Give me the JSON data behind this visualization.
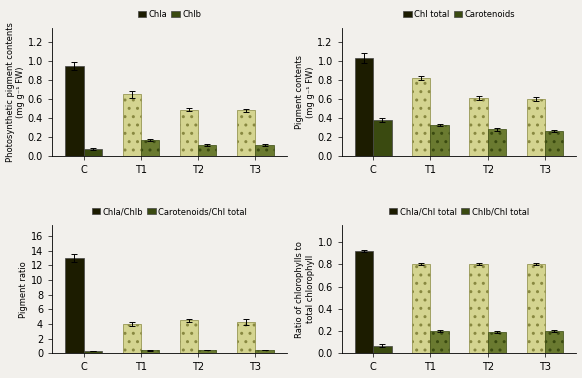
{
  "categories": [
    "C",
    "T1",
    "T2",
    "T3"
  ],
  "subplot1": {
    "title_labels": [
      "Chla",
      "Chlb"
    ],
    "ylabel": "Photosynthetic pigment contents\n(mg g⁻¹ FW)",
    "ylim": [
      0.0,
      1.35
    ],
    "yticks": [
      0.0,
      0.2,
      0.4,
      0.6,
      0.8,
      1.0,
      1.2
    ],
    "series1_values": [
      0.95,
      0.65,
      0.49,
      0.48
    ],
    "series1_errors": [
      0.04,
      0.04,
      0.02,
      0.02
    ],
    "series2_values": [
      0.07,
      0.17,
      0.12,
      0.12
    ],
    "series2_errors": [
      0.01,
      0.01,
      0.01,
      0.01
    ]
  },
  "subplot2": {
    "title_labels": [
      "Chl total",
      "Carotenoids"
    ],
    "ylabel": "Pigment contents\n(mg g⁻¹ FW)",
    "ylim": [
      0.0,
      1.35
    ],
    "yticks": [
      0.0,
      0.2,
      0.4,
      0.6,
      0.8,
      1.0,
      1.2
    ],
    "series1_values": [
      1.03,
      0.82,
      0.61,
      0.6
    ],
    "series1_errors": [
      0.05,
      0.02,
      0.02,
      0.02
    ],
    "series2_values": [
      0.38,
      0.33,
      0.28,
      0.26
    ],
    "series2_errors": [
      0.02,
      0.01,
      0.02,
      0.01
    ]
  },
  "subplot3": {
    "title_labels": [
      "Chla/Chlb",
      "Carotenoids/Chl total"
    ],
    "ylabel": "Pigment ratio",
    "ylim": [
      0.0,
      17.5
    ],
    "yticks": [
      0.0,
      2.0,
      4.0,
      6.0,
      8.0,
      10.0,
      12.0,
      14.0,
      16.0
    ],
    "series1_values": [
      13.0,
      4.0,
      4.5,
      4.3
    ],
    "series1_errors": [
      0.5,
      0.3,
      0.2,
      0.4
    ],
    "series2_values": [
      0.37,
      0.4,
      0.46,
      0.44
    ],
    "series2_errors": [
      0.02,
      0.02,
      0.03,
      0.03
    ]
  },
  "subplot4": {
    "title_labels": [
      "Chla/Chl total",
      "Chlb/Chl total"
    ],
    "ylabel": "Ratio of chlorophylls to\ntotal chlorophyll",
    "ylim": [
      0.0,
      1.15
    ],
    "yticks": [
      0.0,
      0.2,
      0.4,
      0.6,
      0.8,
      1.0
    ],
    "series1_values": [
      0.92,
      0.8,
      0.8,
      0.8
    ],
    "series1_errors": [
      0.01,
      0.01,
      0.01,
      0.01
    ],
    "series2_values": [
      0.07,
      0.2,
      0.19,
      0.2
    ],
    "series2_errors": [
      0.01,
      0.01,
      0.01,
      0.01
    ]
  },
  "bar_width": 0.32,
  "background_color": "#f2f0ec",
  "color_s1_solid": "#1c1c00",
  "color_s1_hatch_face": "#d4d490",
  "color_s1_hatch_edge": "#888840",
  "color_s2_solid": "#3a4a10",
  "color_s2_hatch_face": "#6a7a30",
  "color_s2_hatch_edge": "#3a4a10",
  "hatch_s1": "..",
  "hatch_s2": ".."
}
